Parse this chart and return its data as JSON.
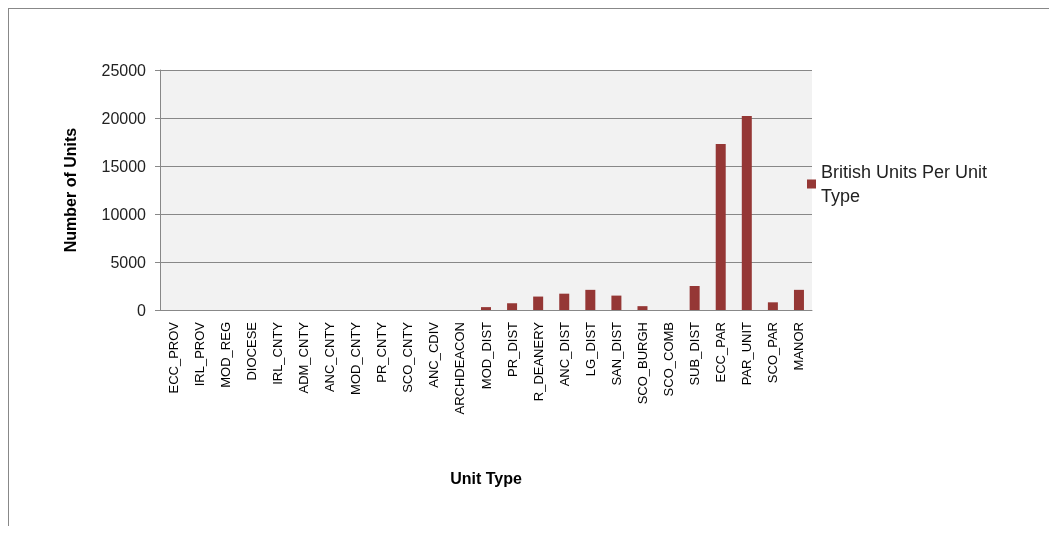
{
  "chart_data": {
    "type": "bar",
    "xlabel": "Unit Type",
    "ylabel": "Number of Units",
    "categories": [
      "ECC_PROV",
      "IRL_PROV",
      "MOD_REG",
      "DIOCESE",
      "IRL_CNTY",
      "ADM_CNTY",
      "ANC_CNTY",
      "MOD_CNTY",
      "PR_CNTY",
      "SCO_CNTY",
      "ANC_CDIV",
      "ARCHDEACON",
      "MOD_DIST",
      "PR_DIST",
      "R_DEANERY",
      "ANC_DIST",
      "LG_DIST",
      "SAN_DIST",
      "SCO_BURGH",
      "SCO_COMB",
      "SUB_DIST",
      "ECC_PAR",
      "PAR_UNIT",
      "SCO_PAR",
      "MANOR"
    ],
    "series": [
      {
        "name": "British Units Per Unit Type",
        "color": "#953735",
        "values": [
          0,
          0,
          0,
          0,
          0,
          0,
          0,
          0,
          0,
          0,
          0,
          0,
          300,
          700,
          1400,
          1700,
          2100,
          1500,
          400,
          0,
          2500,
          17300,
          20200,
          800,
          2100
        ]
      }
    ],
    "ylim": [
      0,
      25000
    ],
    "yticks": [
      0,
      5000,
      10000,
      15000,
      20000,
      25000
    ],
    "grid": "y",
    "legend": "right"
  }
}
